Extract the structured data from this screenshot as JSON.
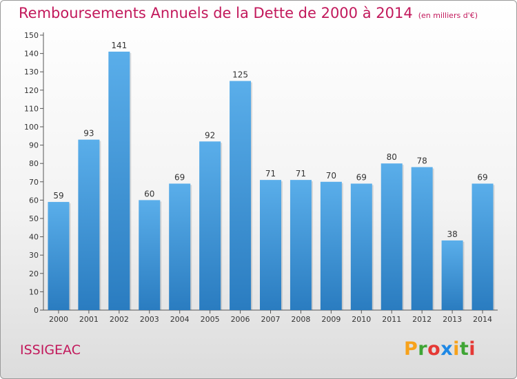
{
  "header": {
    "title": "Remboursements Annuels de la Dette de 2000 à 2014",
    "unit": "(en milliers d'€)"
  },
  "footer": {
    "commune": "ISSIGEAC",
    "logo_letters": [
      "P",
      "r",
      "o",
      "x",
      "i",
      "t",
      "i"
    ],
    "logo_colors": [
      "#f7a21b",
      "#3fa535",
      "#e53935",
      "#1e88e5",
      "#f7a21b",
      "#3fa535",
      "#e53935"
    ]
  },
  "colors": {
    "bar_light": "#5aaeea",
    "bar_dark": "#2a7cc0",
    "title": "#c2185b"
  },
  "chart_data": {
    "type": "bar",
    "title": "Remboursements Annuels de la Dette de 2000 à 2014",
    "unit_label": "(en milliers d'€)",
    "categories": [
      "2000",
      "2001",
      "2002",
      "2003",
      "2004",
      "2005",
      "2006",
      "2007",
      "2008",
      "2009",
      "2010",
      "2011",
      "2012",
      "2013",
      "2014"
    ],
    "values": [
      59,
      93,
      141,
      60,
      69,
      92,
      125,
      71,
      71,
      70,
      69,
      80,
      78,
      38,
      69
    ],
    "ylim": [
      0,
      150
    ],
    "yticks": [
      0,
      10,
      20,
      30,
      40,
      50,
      60,
      70,
      80,
      90,
      100,
      110,
      120,
      130,
      140,
      150
    ],
    "grid": false,
    "data_labels": true
  }
}
